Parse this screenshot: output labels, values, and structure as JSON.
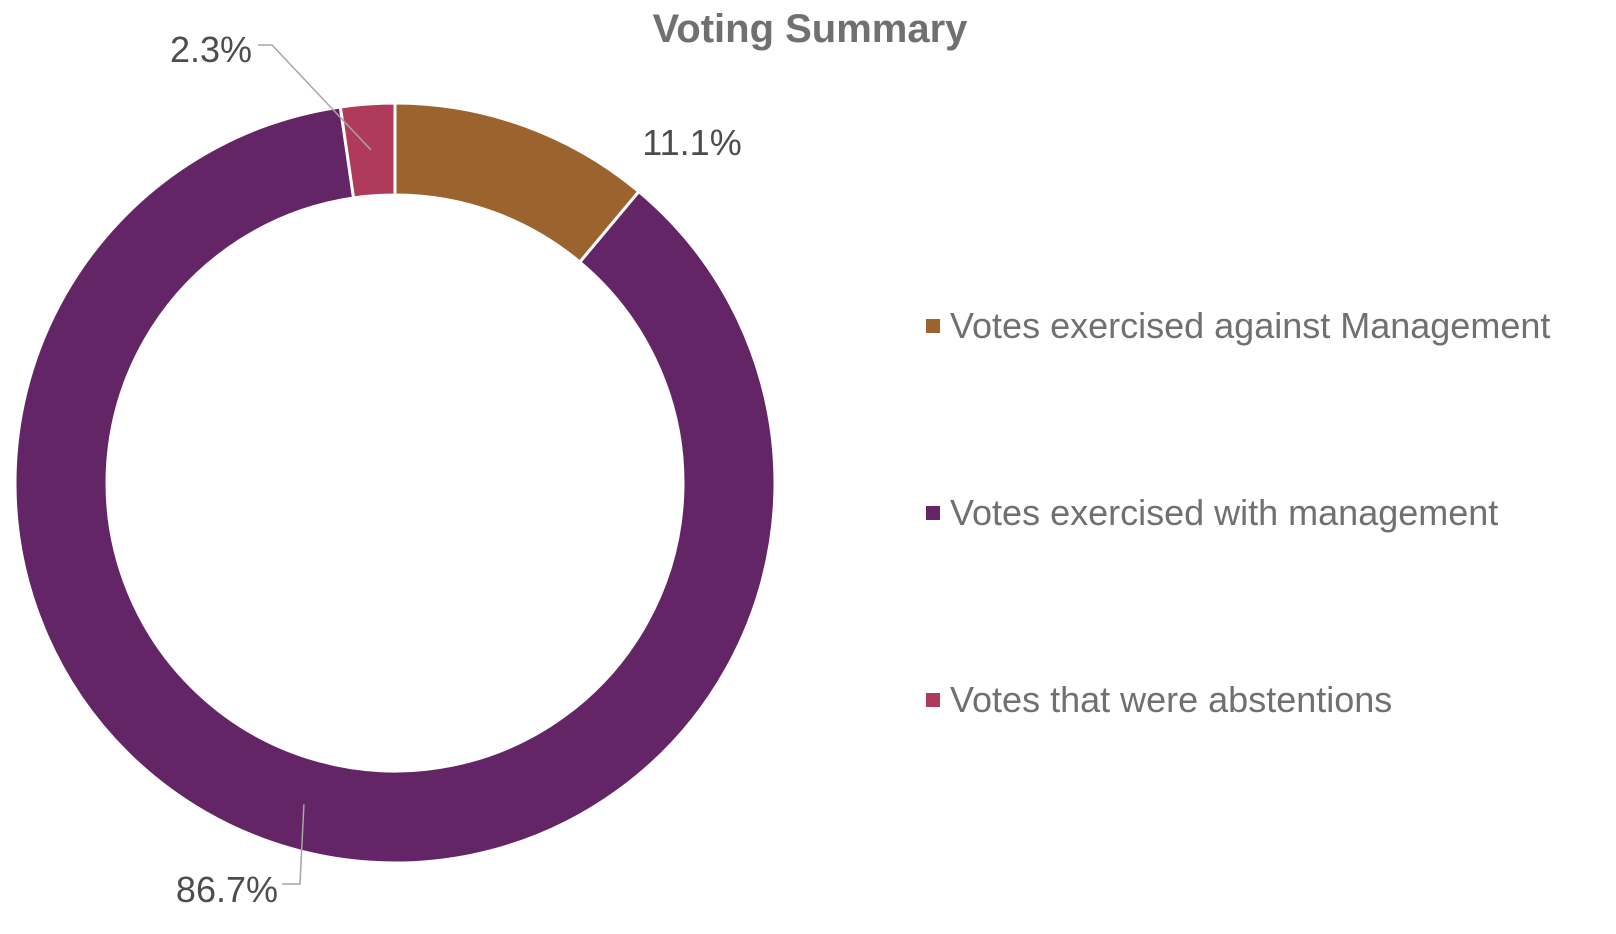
{
  "chart_data": {
    "type": "pie",
    "variant": "doughnut",
    "title": "Voting Summary",
    "categories": [
      "Votes exercised against Management",
      "Votes exercised with management",
      "Votes that were abstentions"
    ],
    "values": [
      11.1,
      86.7,
      2.3
    ],
    "data_labels": [
      "11.1%",
      "86.7%",
      "2.3%"
    ],
    "colors": [
      "#9b632d",
      "#632565",
      "#b03a59"
    ],
    "start_angle_deg": 0,
    "direction": "clockwise",
    "legend_position": "right"
  }
}
